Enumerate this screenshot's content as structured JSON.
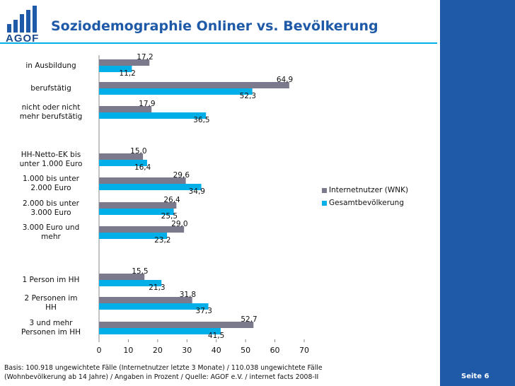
{
  "header": {
    "logo_text": "AGOF",
    "title": "Soziodemographie Onliner vs. Bevölkerung"
  },
  "footer": {
    "footnote_line1": "Basis: 100.918 ungewichtete Fälle (Internetnutzer letzte 3 Monate) / 110.038 ungewichtete Fälle",
    "footnote_line2": "(Wohnbevölkerung ab 14 Jahre) / Angaben in Prozent / Quelle: AGOF e.V. / internet facts 2008-II",
    "page": "Seite 6"
  },
  "colors": {
    "series1": "#7a7a8c",
    "series2": "#00aee8",
    "brand": "#1f5aa8"
  },
  "chart_data": {
    "type": "bar",
    "orientation": "horizontal",
    "categories": [
      [
        "in Ausbildung"
      ],
      [
        "berufstätig"
      ],
      [
        "nicht oder nicht",
        "mehr berufstätig"
      ],
      [
        "HH-Netto-EK bis",
        "unter 1.000 Euro"
      ],
      [
        "1.000 bis unter",
        "2.000 Euro"
      ],
      [
        "2.000 bis unter",
        "3.000 Euro"
      ],
      [
        "3.000 Euro und",
        "mehr"
      ],
      [
        "1 Person im HH"
      ],
      [
        "2 Personen im",
        "HH"
      ],
      [
        "3 und mehr",
        "Personen im HH"
      ]
    ],
    "groups": [
      0,
      0,
      0,
      1,
      1,
      1,
      1,
      2,
      2,
      2
    ],
    "series": [
      {
        "name": "Internetnutzer (WNK)",
        "values": [
          17.2,
          64.9,
          17.9,
          15.0,
          29.6,
          26.4,
          29.0,
          15.5,
          31.8,
          52.7
        ],
        "labels": [
          "17,2",
          "64,9",
          "17,9",
          "15,0",
          "29,6",
          "26,4",
          "29,0",
          "15,5",
          "31,8",
          "52,7"
        ]
      },
      {
        "name": "Gesamtbevölkerung",
        "values": [
          11.2,
          52.3,
          36.5,
          16.4,
          34.9,
          25.5,
          23.2,
          21.3,
          37.3,
          41.5
        ],
        "labels": [
          "11,2",
          "52,3",
          "36,5",
          "16,4",
          "34,9",
          "25,5",
          "23,2",
          "21,3",
          "37,3",
          "41,5"
        ]
      }
    ],
    "xlim": [
      0,
      70
    ],
    "xticks": [
      "0",
      "10",
      "20",
      "30",
      "40",
      "50",
      "60",
      "70"
    ],
    "xtick_values": [
      0,
      10,
      20,
      30,
      40,
      50,
      60,
      70
    ],
    "title": "",
    "xlabel": "",
    "ylabel": "",
    "legend_position": "right"
  }
}
